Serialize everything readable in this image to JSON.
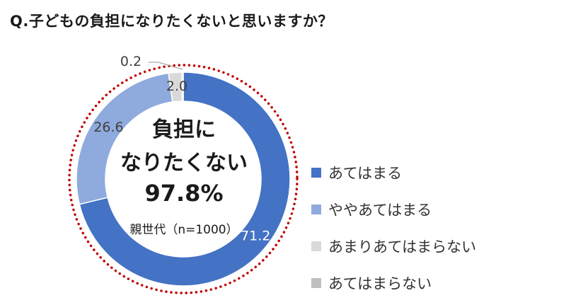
{
  "question": "Q.子どもの負担になりたくないと思いますか？",
  "center": {
    "line1": "負担に",
    "line2": "なりたくない",
    "line3": "97.8%",
    "note": "親世代（n=1000）"
  },
  "colors": {
    "dotted_circle": "#c00000",
    "label_text": "#404040"
  },
  "chart_data": {
    "type": "pie",
    "variant": "donut",
    "title": "Q.子どもの負担になりたくないと思いますか？",
    "categories": [
      "あてはまる",
      "ややあてはまる",
      "あまりあてはまらない",
      "あてはまらない"
    ],
    "values": [
      71.2,
      26.6,
      2.0,
      0.2
    ],
    "value_labels": [
      "71.2",
      "26.6",
      "2.0",
      "0.2"
    ],
    "colors": [
      "#4472c4",
      "#8faadc",
      "#d9d9d9",
      "#bfbfbf"
    ],
    "label_colors": [
      "#ffffff",
      "#404040",
      "#404040",
      "#404040"
    ],
    "legend_position": "right",
    "start_angle": "top",
    "direction": "clockwise"
  }
}
